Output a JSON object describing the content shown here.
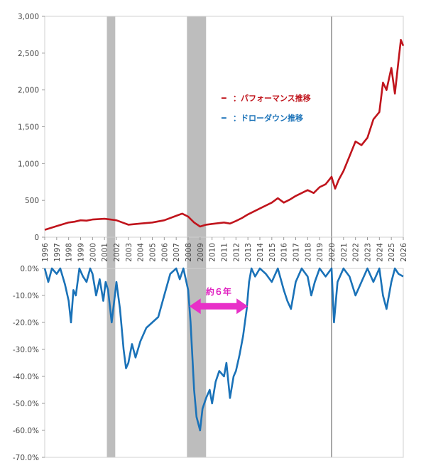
{
  "chart_data": {
    "type": "line",
    "panels": [
      {
        "name": "performance",
        "ylim": [
          0,
          3000
        ],
        "yticks": [
          "0",
          "500",
          "1,000",
          "1,500",
          "2,000",
          "2,500",
          "3,000"
        ],
        "ytick_values": [
          0,
          500,
          1000,
          1500,
          2000,
          2500,
          3000
        ],
        "series": [
          {
            "name": "パフォーマンス推移",
            "color": "#c0141c",
            "x": [
              1996.0,
              1997.0,
              1998.0,
              1998.5,
              1999.0,
              1999.5,
              2000.0,
              2001.0,
              2001.5,
              2002.0,
              2002.5,
              2003.0,
              2004.0,
              2005.0,
              2006.0,
              2007.0,
              2007.5,
              2008.0,
              2008.5,
              2009.0,
              2009.5,
              2010.0,
              2011.0,
              2011.5,
              2012.0,
              2012.5,
              2013.0,
              2014.0,
              2015.0,
              2015.5,
              2016.0,
              2016.5,
              2017.0,
              2018.0,
              2018.5,
              2019.0,
              2019.5,
              2020.0,
              2020.3,
              2020.6,
              2021.0,
              2021.5,
              2022.0,
              2022.5,
              2023.0,
              2023.5,
              2024.0,
              2024.3,
              2024.6,
              2025.0,
              2025.3,
              2025.6,
              2025.8,
              2026.0
            ],
            "y": [
              100,
              150,
              200,
              210,
              230,
              225,
              240,
              250,
              240,
              230,
              200,
              170,
              185,
              200,
              230,
              290,
              320,
              280,
              200,
              145,
              170,
              180,
              200,
              185,
              220,
              260,
              310,
              390,
              470,
              530,
              470,
              510,
              560,
              640,
              600,
              680,
              720,
              820,
              660,
              780,
              900,
              1100,
              1300,
              1250,
              1350,
              1600,
              1700,
              2100,
              2000,
              2300,
              1950,
              2400,
              2680,
              2600
            ]
          }
        ]
      },
      {
        "name": "drawdown",
        "ylim": [
          -70,
          0
        ],
        "yticks": [
          "0.0%",
          "-10.0%",
          "-20.0%",
          "-30.0%",
          "-40.0%",
          "-50.0%",
          "-60.0%",
          "-70.0%"
        ],
        "ytick_values": [
          0,
          -10,
          -20,
          -30,
          -40,
          -50,
          -60,
          -70
        ],
        "series": [
          {
            "name": "ドローダウン推移",
            "color": "#1a72b8",
            "x": [
              1996.0,
              1996.3,
              1996.6,
              1997.0,
              1997.3,
              1997.7,
              1998.0,
              1998.2,
              1998.4,
              1998.6,
              1998.9,
              1999.2,
              1999.5,
              1999.8,
              2000.0,
              2000.3,
              2000.6,
              2000.9,
              2001.1,
              2001.3,
              2001.6,
              2002.0,
              2002.3,
              2002.6,
              2002.8,
              2003.0,
              2003.3,
              2003.6,
              2004.0,
              2004.5,
              2005.0,
              2005.5,
              2006.0,
              2006.5,
              2007.0,
              2007.3,
              2007.6,
              2008.0,
              2008.2,
              2008.5,
              2008.7,
              2009.0,
              2009.2,
              2009.5,
              2009.8,
              2010.0,
              2010.3,
              2010.6,
              2011.0,
              2011.2,
              2011.5,
              2011.8,
              2012.0,
              2012.3,
              2012.6,
              2012.9,
              2013.1,
              2013.3,
              2013.6,
              2014.0,
              2014.5,
              2015.0,
              2015.5,
              2016.0,
              2016.3,
              2016.6,
              2017.0,
              2017.5,
              2018.0,
              2018.3,
              2018.6,
              2019.0,
              2019.5,
              2020.0,
              2020.2,
              2020.5,
              2021.0,
              2021.5,
              2022.0,
              2022.5,
              2023.0,
              2023.5,
              2024.0,
              2024.3,
              2024.6,
              2025.0,
              2025.3,
              2025.6,
              2026.0
            ],
            "y": [
              0,
              -5,
              0,
              -2,
              0,
              -6,
              -12,
              -20,
              -8,
              -10,
              0,
              -3,
              -5,
              0,
              -2,
              -10,
              -4,
              -12,
              -5,
              -8,
              -20,
              -5,
              -15,
              -30,
              -37,
              -35,
              -28,
              -33,
              -27,
              -22,
              -20,
              -18,
              -10,
              -2,
              0,
              -4,
              0,
              -8,
              -20,
              -45,
              -55,
              -60,
              -52,
              -48,
              -45,
              -50,
              -42,
              -38,
              -40,
              -35,
              -48,
              -40,
              -38,
              -32,
              -25,
              -15,
              -5,
              0,
              -3,
              0,
              -2,
              -5,
              0,
              -8,
              -12,
              -15,
              -5,
              0,
              -3,
              -10,
              -5,
              0,
              -3,
              0,
              -20,
              -5,
              0,
              -3,
              -10,
              -5,
              0,
              -5,
              0,
              -10,
              -15,
              -5,
              0,
              -2,
              -3
            ]
          }
        ]
      }
    ],
    "x_ticks": [
      "1996",
      "1997",
      "1998",
      "1999",
      "2000",
      "2001",
      "2002",
      "2003",
      "2004",
      "2005",
      "2006",
      "2007",
      "2008",
      "2009",
      "2010",
      "2011",
      "2012",
      "2013",
      "2014",
      "2015",
      "2016",
      "2017",
      "2018",
      "2019",
      "2020",
      "2021",
      "2022",
      "2023",
      "2024",
      "2025",
      "2026"
    ],
    "x_tick_values": [
      1996,
      1997,
      1998,
      1999,
      2000,
      2001,
      2002,
      2003,
      2004,
      2005,
      2006,
      2007,
      2008,
      2009,
      2010,
      2011,
      2012,
      2013,
      2014,
      2015,
      2016,
      2017,
      2018,
      2019,
      2020,
      2021,
      2022,
      2023,
      2024,
      2025,
      2026
    ],
    "xlim": [
      1996,
      2026
    ],
    "shaded_periods": [
      {
        "start": 2001.2,
        "end": 2001.9
      },
      {
        "start": 2007.9,
        "end": 2009.5
      }
    ],
    "vertical_line": {
      "x": 2020.0
    },
    "annotation": {
      "text": "約６年",
      "arrow_from": 2008.1,
      "arrow_to": 2013.0,
      "y": -14
    },
    "legend": [
      {
        "marker": "━",
        "label": "：パフォーマンス推移",
        "color": "#c0141c"
      },
      {
        "marker": "━",
        "label": "：ドローダウン推移",
        "color": "#1a72b8"
      }
    ]
  }
}
